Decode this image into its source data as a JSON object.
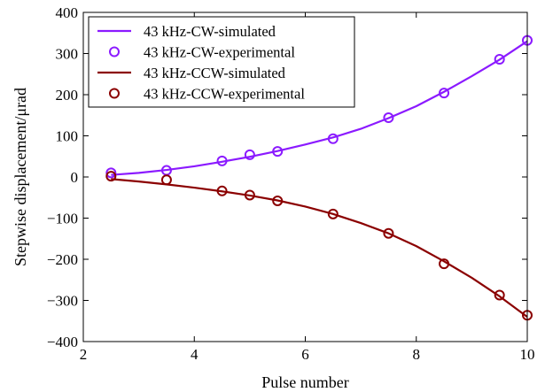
{
  "chart_data": {
    "type": "line",
    "title": "",
    "xlabel": "Pulse number",
    "ylabel": "Stepwise displacement/μrad",
    "xlim": [
      2,
      10
    ],
    "ylim": [
      -400,
      400
    ],
    "xticks": [
      2,
      4,
      6,
      8,
      10
    ],
    "yticks": [
      -400,
      -300,
      -200,
      -100,
      0,
      100,
      200,
      300,
      400
    ],
    "xtick_labels": [
      "2",
      "4",
      "6",
      "8",
      "10"
    ],
    "ytick_labels": [
      "−400",
      "−300",
      "−200",
      "−100",
      "0",
      "100",
      "200",
      "300",
      "400"
    ],
    "grid": false,
    "legend_position": "top-left",
    "series": [
      {
        "name": "43 kHz-CW-simulated",
        "kind": "line",
        "color": "#8b1aff",
        "x": [
          2.5,
          3.0,
          3.5,
          4.0,
          4.5,
          5.0,
          5.5,
          6.0,
          6.5,
          7.0,
          7.5,
          8.0,
          8.5,
          9.0,
          9.5,
          10.0
        ],
        "y": [
          5,
          10,
          17,
          26,
          37,
          49,
          63,
          79,
          96,
          117,
          143,
          172,
          207,
          245,
          285,
          330
        ]
      },
      {
        "name": "43 kHz-CW-experimental",
        "kind": "marker",
        "color": "#8b1aff",
        "x": [
          2.5,
          3.5,
          4.5,
          5.0,
          5.5,
          6.5,
          7.5,
          8.5,
          9.5,
          10.0
        ],
        "y": [
          10,
          16,
          39,
          54,
          62,
          93,
          144,
          204,
          286,
          332
        ]
      },
      {
        "name": "43 kHz-CCW-simulated",
        "kind": "line",
        "color": "#8b0000",
        "x": [
          2.5,
          3.0,
          3.5,
          4.0,
          4.5,
          5.0,
          5.5,
          6.0,
          6.5,
          7.0,
          7.5,
          8.0,
          8.5,
          9.0,
          9.5,
          10.0
        ],
        "y": [
          -5,
          -11,
          -18,
          -26,
          -35,
          -45,
          -57,
          -72,
          -90,
          -112,
          -137,
          -168,
          -205,
          -245,
          -290,
          -340
        ]
      },
      {
        "name": "43 kHz-CCW-experimental",
        "kind": "marker",
        "color": "#8b0000",
        "x": [
          2.5,
          3.5,
          4.5,
          5.0,
          5.5,
          6.5,
          7.5,
          8.5,
          9.5,
          10.0
        ],
        "y": [
          2,
          -7,
          -34,
          -44,
          -58,
          -90,
          -137,
          -211,
          -287,
          -336
        ]
      }
    ]
  }
}
